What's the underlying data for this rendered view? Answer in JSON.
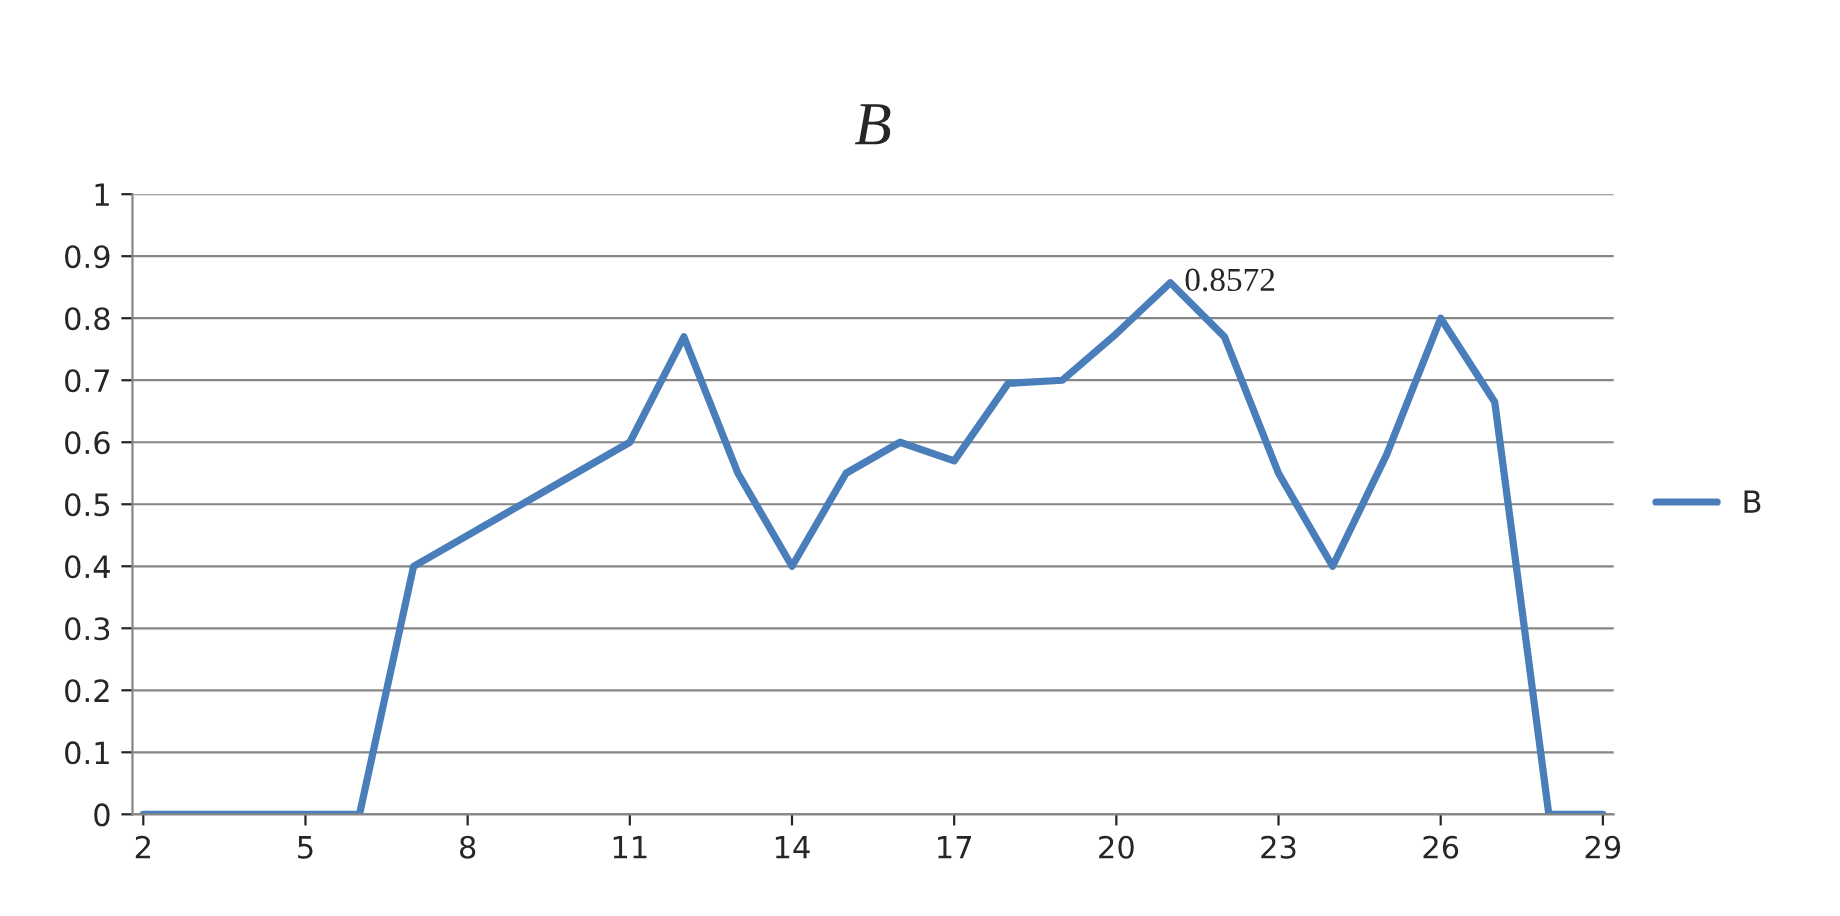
{
  "chart_data": {
    "type": "line",
    "title": "B",
    "categories": [
      "2",
      null,
      null,
      "5",
      null,
      null,
      "8",
      null,
      null,
      "11",
      null,
      null,
      "14",
      null,
      null,
      "17",
      null,
      null,
      "20",
      null,
      null,
      "23",
      null,
      null,
      "26",
      null,
      null,
      "29"
    ],
    "series": [
      {
        "name": "B",
        "color": "#4a7ebb",
        "values": [
          0,
          0,
          0,
          0,
          0,
          0.4,
          0.45,
          0.5,
          0.55,
          0.6,
          0.77,
          0.55,
          0.4,
          0.55,
          0.6,
          0.57,
          0.695,
          0.7,
          0.775,
          0.8572,
          0.77,
          0.55,
          0.4,
          0.58,
          0.8,
          0.665,
          0,
          0
        ],
        "value_labels": [
          null,
          null,
          null,
          null,
          null,
          null,
          null,
          null,
          null,
          null,
          null,
          null,
          null,
          null,
          null,
          null,
          null,
          null,
          null,
          "0.8572",
          null,
          null,
          null,
          null,
          null,
          null,
          null,
          null
        ]
      }
    ],
    "ylim": [
      0,
      1
    ],
    "yticks": [
      0,
      0.1,
      0.2,
      0.3,
      0.4,
      0.5,
      0.6,
      0.7,
      0.8,
      0.9,
      1
    ],
    "grid": "y",
    "legend": "right",
    "marker": "none",
    "line_style": "solid"
  }
}
